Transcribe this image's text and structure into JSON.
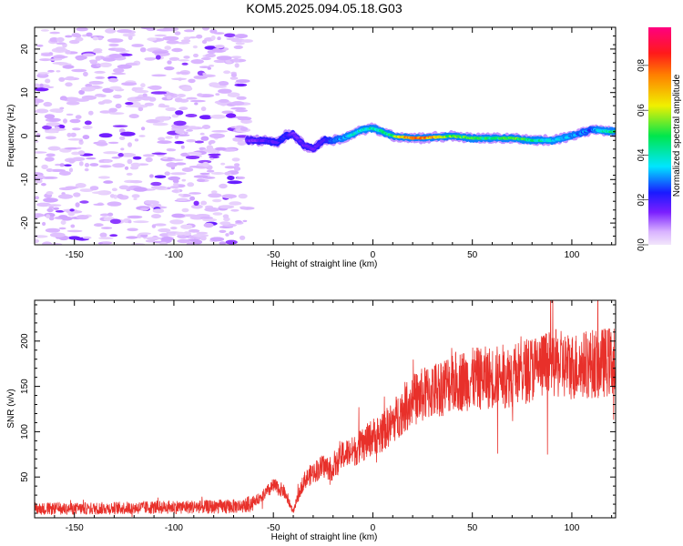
{
  "title": "KOM5.2025.094.05.18.G03",
  "chart_data": [
    {
      "type": "heatmap",
      "xlabel": "Height of straight line (km)",
      "ylabel": "Frequency (Hz)",
      "xlim": [
        -170,
        122
      ],
      "ylim": [
        -25,
        25
      ],
      "xticks": [
        -150,
        -100,
        -50,
        0,
        50,
        100
      ],
      "yticks": [
        -20,
        -10,
        0,
        10,
        20
      ],
      "colorbar": {
        "label": "Normalized spectral amplitude",
        "range": [
          0,
          0.97
        ],
        "ticks": [
          0,
          0.2,
          0.4,
          0.6,
          0.8
        ],
        "tick_labels": [
          "0.0",
          "0.2",
          "0.4",
          "0.6",
          "0.8"
        ]
      },
      "ridge": {
        "x": [
          -63,
          -55,
          -48,
          -44,
          -40,
          -35,
          -30,
          -25,
          -20,
          -15,
          -10,
          -5,
          0,
          5,
          10,
          20,
          30,
          40,
          50,
          60,
          70,
          80,
          90,
          100,
          110,
          115,
          122
        ],
        "freq": [
          -1,
          -1,
          -1.5,
          0,
          0.5,
          -2,
          -3,
          -1,
          -1,
          -0.5,
          0.5,
          1.5,
          1.8,
          1,
          0,
          -0.5,
          -0.3,
          0,
          -0.5,
          -0.5,
          -0.5,
          -1,
          -1,
          0,
          1.5,
          1.2,
          1
        ],
        "amplitude": [
          0.15,
          0.2,
          0.22,
          0.25,
          0.18,
          0.2,
          0.18,
          0.22,
          0.3,
          0.35,
          0.4,
          0.45,
          0.45,
          0.5,
          0.55,
          0.9,
          0.8,
          0.6,
          0.55,
          0.5,
          0.6,
          0.5,
          0.4,
          0.35,
          0.3,
          0.45,
          0.5
        ]
      },
      "noise": {
        "x_range": [
          -170,
          -63
        ],
        "amplitude": [
          0.02,
          0.15
        ]
      }
    },
    {
      "type": "line",
      "xlabel": "Height of straight line (km)",
      "ylabel": "SNR (v/v)",
      "xlim": [
        -170,
        122
      ],
      "ylim": [
        5,
        245
      ],
      "xticks": [
        -150,
        -100,
        -50,
        0,
        50,
        100
      ],
      "yticks": [
        50,
        100,
        150,
        200
      ],
      "color": "#e8302a",
      "series": [
        {
          "x": [
            -170,
            -150,
            -120,
            -100,
            -80,
            -65,
            -60,
            -55,
            -50,
            -45,
            -40,
            -35,
            -30,
            -25,
            -20,
            -15,
            -10,
            -5,
            0,
            5,
            10,
            15,
            20,
            30,
            40,
            50,
            60,
            70,
            80,
            90,
            100,
            110,
            122
          ],
          "values": [
            15,
            15,
            16,
            17,
            17,
            18,
            22,
            30,
            40,
            35,
            12,
            45,
            55,
            62,
            58,
            75,
            78,
            85,
            95,
            100,
            110,
            125,
            135,
            145,
            155,
            158,
            160,
            162,
            170,
            175,
            172,
            175,
            178
          ]
        }
      ]
    }
  ]
}
